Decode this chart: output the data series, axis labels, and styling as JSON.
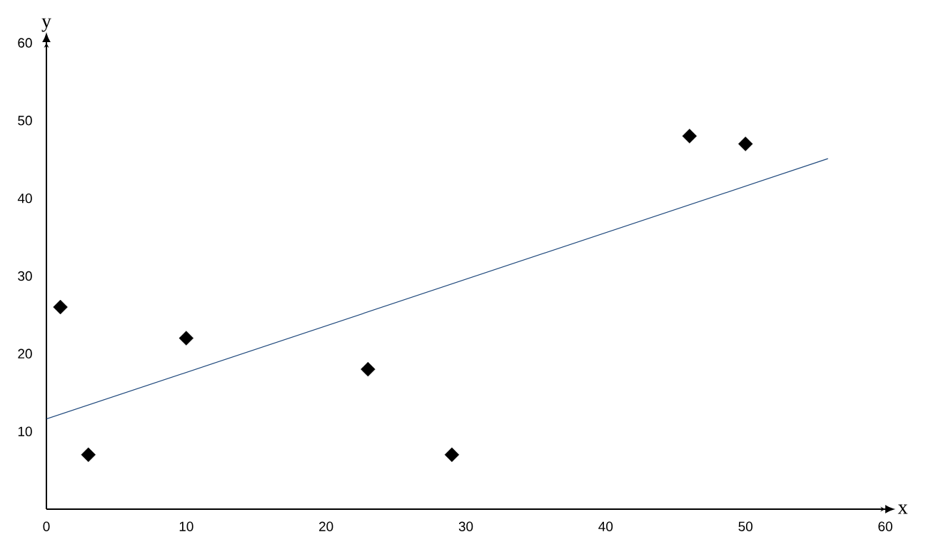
{
  "chart_data": {
    "type": "scatter",
    "xlabel": "x",
    "ylabel": "y",
    "xlim": [
      0,
      60
    ],
    "ylim": [
      0,
      60
    ],
    "xticks": [
      0,
      10,
      20,
      30,
      40,
      50,
      60
    ],
    "yticks": [
      10,
      20,
      30,
      40,
      50,
      60
    ],
    "marker": "diamond",
    "series": [
      {
        "color": "#000000",
        "x": [
          1,
          3,
          10,
          23,
          29,
          46,
          50
        ],
        "values": [
          26,
          7,
          22,
          18,
          7,
          48,
          47
        ]
      },
      {
        "type": "line",
        "color": "#1f497d",
        "marker": "none",
        "x": [
          0,
          55.9
        ],
        "values": [
          11.6,
          45.1
        ]
      }
    ]
  }
}
